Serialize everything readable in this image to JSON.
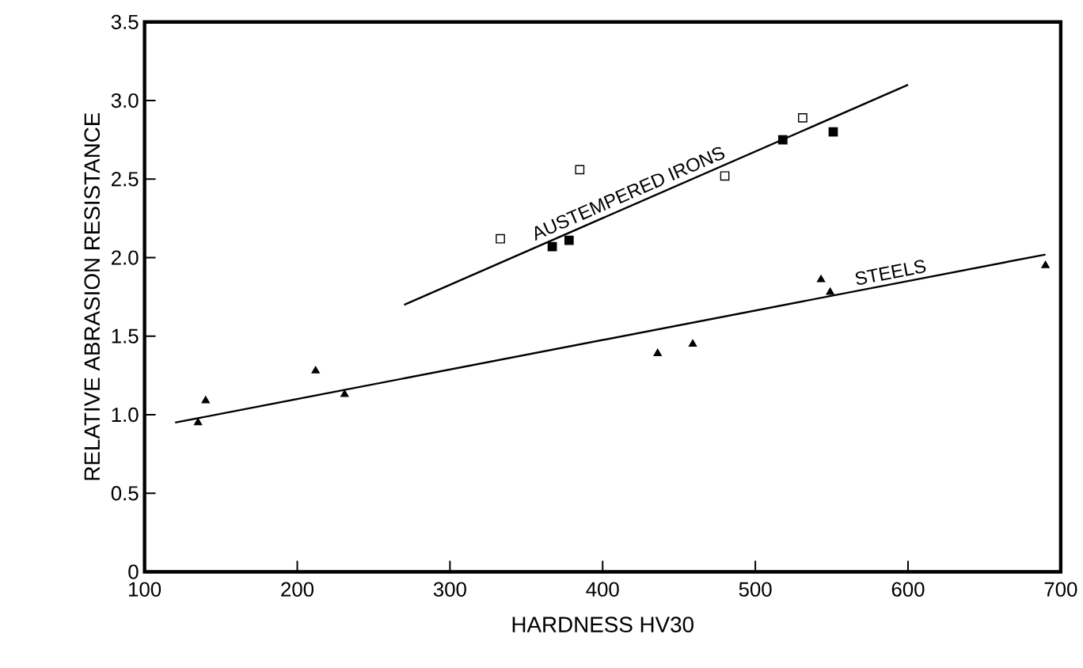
{
  "chart_data": {
    "type": "scatter",
    "xlabel": "HARDNESS HV30",
    "ylabel": "RELATIVE ABRASION RESISTANCE",
    "xlim": [
      100,
      700
    ],
    "xticks": [
      100,
      200,
      300,
      400,
      500,
      600,
      700
    ],
    "ylim": [
      0,
      3.5
    ],
    "yticks": [
      0,
      0.5,
      {
        "value": 1,
        "label": "1.0"
      },
      1.5,
      {
        "value": 2,
        "label": "2.0"
      },
      2.5,
      {
        "value": 3,
        "label": "3.0"
      },
      3.5
    ],
    "grid": false,
    "series": [
      {
        "marker": "triangle",
        "color": "#000000",
        "x": [
          135,
          140,
          212,
          231,
          436,
          459,
          543,
          549,
          690
        ],
        "values": [
          0.95,
          1.09,
          1.28,
          1.13,
          1.39,
          1.45,
          1.86,
          1.78,
          1.95
        ]
      },
      {
        "marker": "square",
        "color": "#ffffff",
        "x": [
          333,
          385,
          480,
          531
        ],
        "values": [
          2.12,
          2.56,
          2.52,
          2.89
        ]
      },
      {
        "marker": "square",
        "color": "#000000",
        "x": [
          367,
          378,
          518,
          551
        ],
        "values": [
          2.07,
          2.11,
          2.75,
          2.8
        ]
      },
      {
        "type": "line",
        "marker": "none",
        "color": "#000000",
        "x": [
          270,
          600
        ],
        "values": [
          1.7,
          3.1
        ]
      },
      {
        "type": "line",
        "marker": "none",
        "color": "#000000",
        "x": [
          120,
          690
        ],
        "values": [
          0.95,
          2.02
        ]
      }
    ],
    "annotations": [
      {
        "text": "AUSTEMPERED IRONS",
        "x": 420,
        "y": 2.34
      },
      {
        "text": "STEELS",
        "x": 590,
        "y": 1.83
      }
    ]
  }
}
